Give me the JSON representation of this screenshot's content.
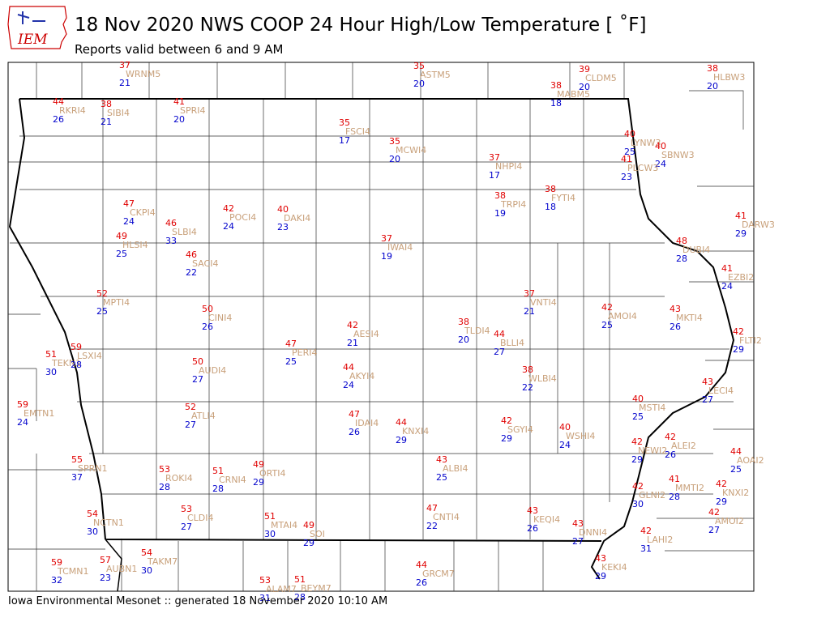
{
  "logo": "IEM",
  "header": {
    "title": "18 Nov 2020 NWS COOP 24 Hour High/Low Temperature [ ˚F]",
    "subtitle": "Reports valid between 6 and 9 AM"
  },
  "stations": [
    {
      "id": "WRNM5",
      "high": 37,
      "low": 21
    },
    {
      "id": "ASTM5",
      "high": 35,
      "low": 20
    },
    {
      "id": "CLDM5",
      "high": 39,
      "low": 20
    },
    {
      "id": "MABM5",
      "high": 38,
      "low": 18
    },
    {
      "id": "HLBW3",
      "high": 38,
      "low": 20
    },
    {
      "id": "RKRI4",
      "high": 44,
      "low": 26
    },
    {
      "id": "SIBI4",
      "high": 38,
      "low": 21
    },
    {
      "id": "SPRI4",
      "high": 41,
      "low": 20
    },
    {
      "id": "FSCI4",
      "high": 35,
      "low": 17
    },
    {
      "id": "MCWI4",
      "high": 35,
      "low": 20
    },
    {
      "id": "LYNW3",
      "high": 40,
      "low": 25
    },
    {
      "id": "SBNW3",
      "high": 40,
      "low": 24
    },
    {
      "id": "PLCW3",
      "high": 41,
      "low": 23
    },
    {
      "id": "NHPI4",
      "high": 37,
      "low": 17
    },
    {
      "id": "CKPI4",
      "high": 47,
      "low": 24
    },
    {
      "id": "SLBI4",
      "high": 46,
      "low": 33
    },
    {
      "id": "POCI4",
      "high": 42,
      "low": 24
    },
    {
      "id": "DAKI4",
      "high": 40,
      "low": 23
    },
    {
      "id": "TRPI4",
      "high": 38,
      "low": 19
    },
    {
      "id": "FYTI4",
      "high": 38,
      "low": 18
    },
    {
      "id": "DARW3",
      "high": 41,
      "low": 29
    },
    {
      "id": "HLSI4",
      "high": 49,
      "low": 25
    },
    {
      "id": "SACI4",
      "high": 46,
      "low": 22
    },
    {
      "id": "IWAI4",
      "high": 37,
      "low": 19
    },
    {
      "id": "DUBI4",
      "high": 48,
      "low": 28
    },
    {
      "id": "EZBI2",
      "high": 41,
      "low": 24
    },
    {
      "id": "MPTI4",
      "high": 52,
      "low": 25
    },
    {
      "id": "VNTI4",
      "high": 37,
      "low": 21
    },
    {
      "id": "CINI4",
      "high": 50,
      "low": 26
    },
    {
      "id": "AMOI4",
      "high": 42,
      "low": 25
    },
    {
      "id": "MKTI4",
      "high": 43,
      "low": 26
    },
    {
      "id": "AESI4",
      "high": 42,
      "low": 21
    },
    {
      "id": "TLDI4",
      "high": 38,
      "low": 20
    },
    {
      "id": "BLLI4",
      "high": 44,
      "low": 27
    },
    {
      "id": "FLTI2",
      "high": 42,
      "low": 29
    },
    {
      "id": "TEKN1",
      "high": 51,
      "low": 30
    },
    {
      "id": "LSXI4",
      "high": 59,
      "low": 28
    },
    {
      "id": "PERI4",
      "high": 47,
      "low": 25
    },
    {
      "id": "AUDI4",
      "high": 50,
      "low": 27
    },
    {
      "id": "AKYI4",
      "high": 44,
      "low": 24
    },
    {
      "id": "WLBI4",
      "high": 38,
      "low": 22
    },
    {
      "id": "LECI4",
      "high": 43,
      "low": 27
    },
    {
      "id": "EMTN1",
      "high": 59,
      "low": 24
    },
    {
      "id": "ATLI4",
      "high": 52,
      "low": 27
    },
    {
      "id": "MSTI4",
      "high": 40,
      "low": 25
    },
    {
      "id": "IDAI4",
      "high": 47,
      "low": 26
    },
    {
      "id": "KNXI4",
      "high": 44,
      "low": 29
    },
    {
      "id": "SGYI4",
      "high": 42,
      "low": 29
    },
    {
      "id": "WSHI4",
      "high": 40,
      "low": 24
    },
    {
      "id": "NEWI2",
      "high": 42,
      "low": 29
    },
    {
      "id": "ALEI2",
      "high": 42,
      "low": 26
    },
    {
      "id": "AOAI2",
      "high": 44,
      "low": 25
    },
    {
      "id": "SPRN1",
      "high": 55,
      "low": 37
    },
    {
      "id": "ALBI4",
      "high": 43,
      "low": 25
    },
    {
      "id": "ROKI4",
      "high": 53,
      "low": 28
    },
    {
      "id": "CRNI4",
      "high": 51,
      "low": 28
    },
    {
      "id": "ORTI4",
      "high": 49,
      "low": 29
    },
    {
      "id": "MMTI2",
      "high": 41,
      "low": 28
    },
    {
      "id": "KNXI2",
      "high": 42,
      "low": 29
    },
    {
      "id": "GLNI2",
      "high": 42,
      "low": 30
    },
    {
      "id": "NCTN1",
      "high": 54,
      "low": 30
    },
    {
      "id": "CLDI4",
      "high": 53,
      "low": 27
    },
    {
      "id": "CNTI4",
      "high": 47,
      "low": 22
    },
    {
      "id": "KEQI4",
      "high": 43,
      "low": 26
    },
    {
      "id": "MTAI4",
      "high": 51,
      "low": 30
    },
    {
      "id": "SOI",
      "high": 49,
      "low": 29
    },
    {
      "id": "AMOI2",
      "high": 42,
      "low": 27
    },
    {
      "id": "DNNI4",
      "high": 43,
      "low": 27
    },
    {
      "id": "LAHI2",
      "high": 42,
      "low": 31
    },
    {
      "id": "TAKM7",
      "high": 54,
      "low": 30
    },
    {
      "id": "AUBN1",
      "high": 57,
      "low": 23
    },
    {
      "id": "TCMN1",
      "high": 59,
      "low": 32
    },
    {
      "id": "GRCM7",
      "high": 44,
      "low": 26
    },
    {
      "id": "KEKI4",
      "high": 43,
      "low": 29
    },
    {
      "id": "ALAM7",
      "high": 53,
      "low": 31
    },
    {
      "id": "BEYM7",
      "high": 51,
      "low": 28
    }
  ],
  "footer": "Iowa Environmental Mesonet :: generated 18 November 2020 10:10 AM"
}
